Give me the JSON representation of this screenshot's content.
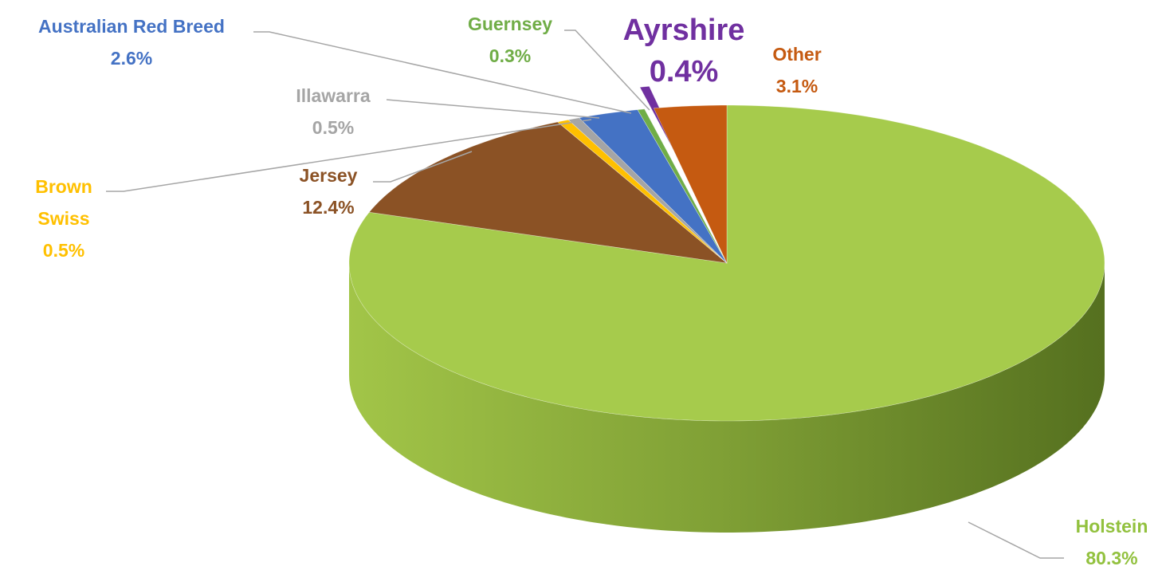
{
  "chart_data": {
    "type": "pie",
    "categories": [
      "Holstein",
      "Jersey",
      "Brown Swiss",
      "Illawarra",
      "Australian Red Breed",
      "Guernsey",
      "Ayrshire",
      "Other"
    ],
    "values": [
      80.3,
      12.4,
      0.5,
      0.5,
      2.6,
      0.3,
      0.4,
      3.1
    ],
    "value_labels": [
      "80.3%",
      "12.4%",
      "0.5%",
      "0.5%",
      "2.6%",
      "0.3%",
      "0.4%",
      "3.1%"
    ],
    "colors": [
      "#a6cb4c",
      "#8b5225",
      "#ffc000",
      "#a5a5a5",
      "#4472c4",
      "#70ad47",
      "#7030a0",
      "#c55a11"
    ]
  }
}
